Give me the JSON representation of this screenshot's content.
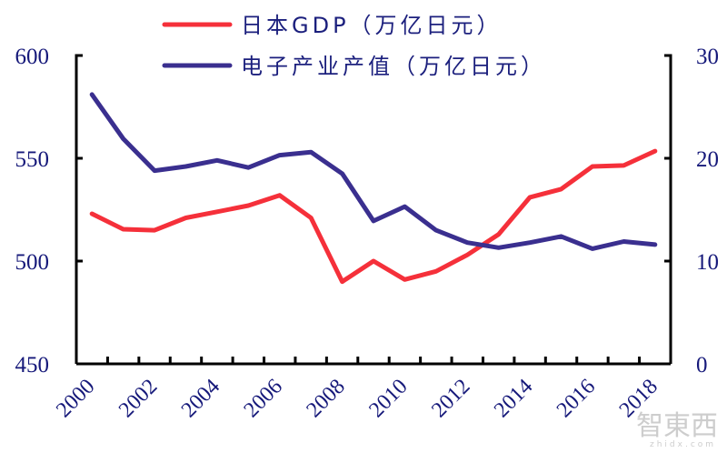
{
  "chart_data": {
    "type": "line",
    "title": "",
    "xlabel": "",
    "categories": [
      "2000",
      "2001",
      "2002",
      "2003",
      "2004",
      "2005",
      "2006",
      "2007",
      "2008",
      "2009",
      "2010",
      "2011",
      "2012",
      "2013",
      "2014",
      "2015",
      "2016",
      "2017",
      "2018"
    ],
    "x_tick_labels": [
      "2000",
      "2002",
      "2004",
      "2006",
      "2008",
      "2010",
      "2012",
      "2014",
      "2016",
      "2018"
    ],
    "left_axis": {
      "label": "",
      "ylim": [
        450,
        600
      ],
      "ticks": [
        450,
        500,
        550,
        600
      ]
    },
    "right_axis": {
      "label": "",
      "ylim": [
        0,
        30
      ],
      "ticks": [
        0,
        10,
        20,
        30
      ]
    },
    "series": [
      {
        "name": "日本GDP（万亿日元）",
        "axis": "left",
        "color": "#f5303a",
        "values": [
          523,
          515.5,
          515,
          521,
          524,
          527,
          532,
          521,
          490,
          500,
          491,
          495,
          503,
          513,
          531,
          535,
          546,
          546.5,
          553.5
        ]
      },
      {
        "name": "电子产业产值（万亿日元）",
        "axis": "right",
        "color": "#3a2f8f",
        "values": [
          26.2,
          21.9,
          18.8,
          19.2,
          19.8,
          19.1,
          20.3,
          20.6,
          18.5,
          13.9,
          15.3,
          13.0,
          11.8,
          11.3,
          11.8,
          12.4,
          11.2,
          11.9,
          11.6
        ]
      }
    ],
    "legend_position": "top-center",
    "grid": false
  },
  "legend": [
    {
      "label": "日本GDP（万亿日元）",
      "color": "#f5303a"
    },
    {
      "label": "电子产业产值（万亿日元）",
      "color": "#3a2f8f"
    }
  ],
  "watermark": {
    "text": "智東西",
    "sub": "zhidx.com"
  }
}
